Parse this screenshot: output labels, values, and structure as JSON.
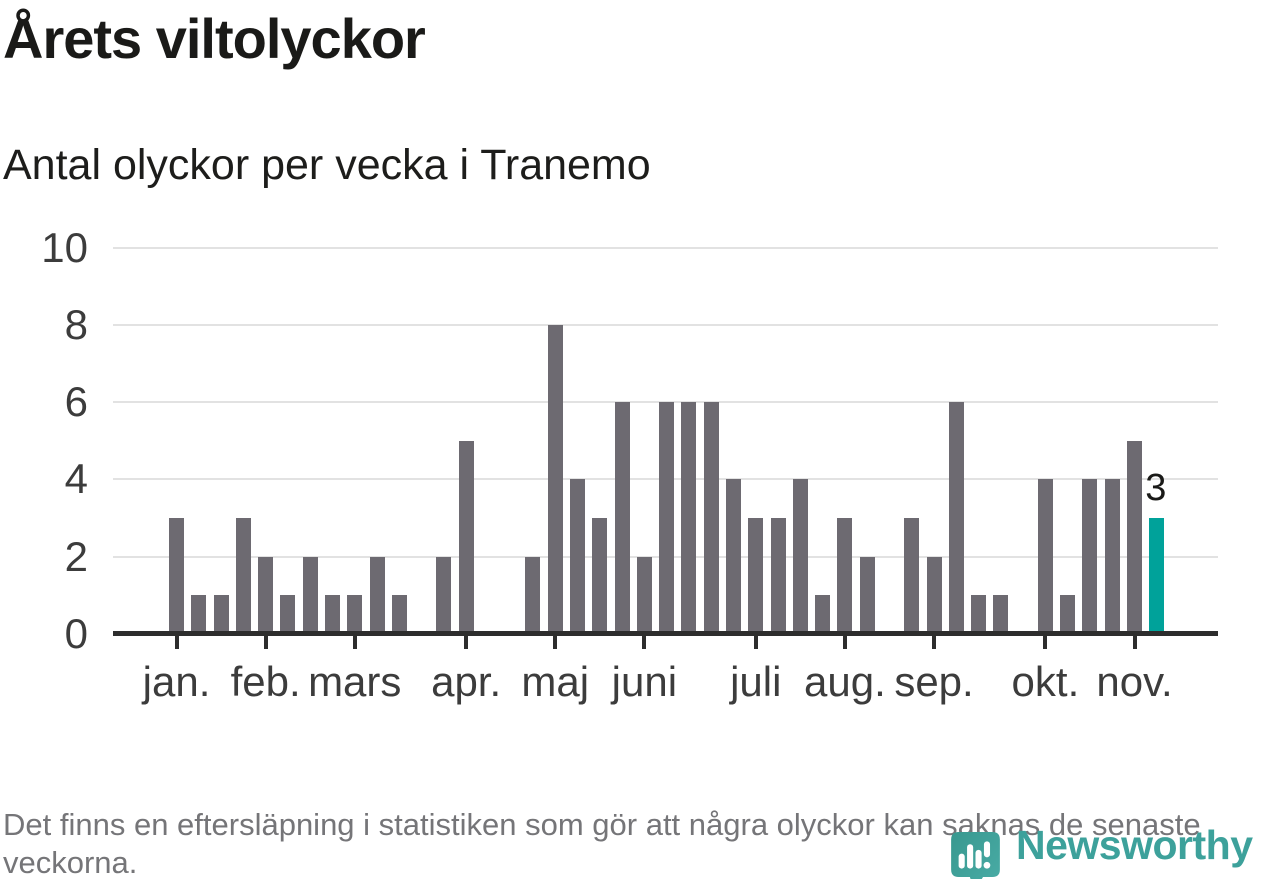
{
  "title": "Årets viltolyckor",
  "subtitle": "Antal olyckor per vecka i Tranemo",
  "footer_note": "Det finns en eftersläpning i statistiken som gör att några olyckor kan saknas de senaste veckorna.",
  "logo": {
    "text": "Newsworthy",
    "icon": "speech-bubble-bar-chart-pin",
    "text_color": "#3da19b",
    "icon_color": "#38988f",
    "icon_color2": "#4aada7"
  },
  "colors": {
    "bar": "#6d6a71",
    "bar_highlight": "#00a29a",
    "gridline": "#e2e2e2",
    "axis": "#2d2d2d",
    "axis_label": "#3c3c3c",
    "title_text": "#1a1a18",
    "footer_text": "#757578",
    "background": "#ffffff"
  },
  "chart_data": {
    "type": "bar",
    "title": "Årets viltolyckor",
    "subtitle": "Antal olyckor per vecka i Tranemo",
    "x_unit": "vecka (week of year)",
    "ylabel": "",
    "xlabel": "",
    "ylim": [
      0,
      10
    ],
    "yticks": [
      0,
      2,
      4,
      6,
      8,
      10
    ],
    "grid": true,
    "values": [
      3,
      1,
      1,
      3,
      2,
      1,
      2,
      1,
      1,
      2,
      1,
      0,
      2,
      5,
      0,
      0,
      2,
      8,
      4,
      3,
      6,
      2,
      6,
      6,
      6,
      4,
      3,
      3,
      4,
      1,
      3,
      2,
      0,
      3,
      2,
      6,
      1,
      1,
      0,
      4,
      1,
      4,
      4,
      5,
      3
    ],
    "highlight_last_bar": true,
    "bar_label": {
      "index": 44,
      "text": "3"
    },
    "months": [
      {
        "label": "jan.",
        "week": 0
      },
      {
        "label": "feb.",
        "week": 4
      },
      {
        "label": "mars",
        "week": 8
      },
      {
        "label": "apr.",
        "week": 13
      },
      {
        "label": "maj",
        "week": 17
      },
      {
        "label": "juni",
        "week": 21
      },
      {
        "label": "juli",
        "week": 26
      },
      {
        "label": "aug.",
        "week": 30
      },
      {
        "label": "sep.",
        "week": 34
      },
      {
        "label": "okt.",
        "week": 39
      },
      {
        "label": "nov.",
        "week": 43
      }
    ]
  }
}
